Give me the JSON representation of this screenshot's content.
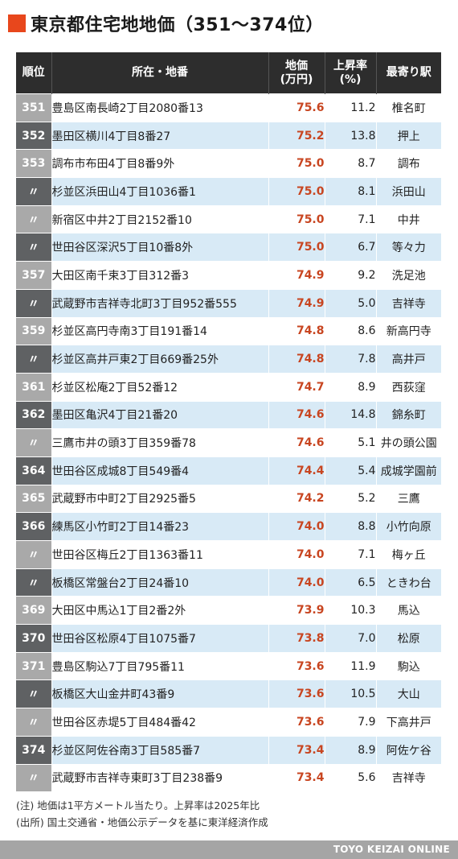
{
  "title": "東京都住宅地地価（351〜374位）",
  "headers": {
    "rank": "順位",
    "address": "所在・地番",
    "price_line1": "地価",
    "price_line2": "(万円)",
    "rate_line1": "上昇率",
    "rate_line2": "(%)",
    "station": "最寄り駅"
  },
  "rows": [
    {
      "rank": "351",
      "address": "豊島区南長崎2丁目2080番13",
      "price": "75.6",
      "rate": "11.2",
      "station": "椎名町"
    },
    {
      "rank": "352",
      "address": "墨田区横川4丁目8番27",
      "price": "75.2",
      "rate": "13.8",
      "station": "押上"
    },
    {
      "rank": "353",
      "address": "調布市布田4丁目8番9外",
      "price": "75.0",
      "rate": "8.7",
      "station": "調布"
    },
    {
      "rank": "〃",
      "address": "杉並区浜田山4丁目1036番1",
      "price": "75.0",
      "rate": "8.1",
      "station": "浜田山"
    },
    {
      "rank": "〃",
      "address": "新宿区中井2丁目2152番10",
      "price": "75.0",
      "rate": "7.1",
      "station": "中井"
    },
    {
      "rank": "〃",
      "address": "世田谷区深沢5丁目10番8外",
      "price": "75.0",
      "rate": "6.7",
      "station": "等々力"
    },
    {
      "rank": "357",
      "address": "大田区南千束3丁目312番3",
      "price": "74.9",
      "rate": "9.2",
      "station": "洗足池"
    },
    {
      "rank": "〃",
      "address": "武蔵野市吉祥寺北町3丁目952番555",
      "price": "74.9",
      "rate": "5.0",
      "station": "吉祥寺"
    },
    {
      "rank": "359",
      "address": "杉並区高円寺南3丁目191番14",
      "price": "74.8",
      "rate": "8.6",
      "station": "新高円寺"
    },
    {
      "rank": "〃",
      "address": "杉並区高井戸東2丁目669番25外",
      "price": "74.8",
      "rate": "7.8",
      "station": "高井戸"
    },
    {
      "rank": "361",
      "address": "杉並区松庵2丁目52番12",
      "price": "74.7",
      "rate": "8.9",
      "station": "西荻窪"
    },
    {
      "rank": "362",
      "address": "墨田区亀沢4丁目21番20",
      "price": "74.6",
      "rate": "14.8",
      "station": "錦糸町"
    },
    {
      "rank": "〃",
      "address": "三鷹市井の頭3丁目359番78",
      "price": "74.6",
      "rate": "5.1",
      "station": "井の頭公園"
    },
    {
      "rank": "364",
      "address": "世田谷区成城8丁目549番4",
      "price": "74.4",
      "rate": "5.4",
      "station": "成城学園前"
    },
    {
      "rank": "365",
      "address": "武蔵野市中町2丁目2925番5",
      "price": "74.2",
      "rate": "5.2",
      "station": "三鷹"
    },
    {
      "rank": "366",
      "address": "練馬区小竹町2丁目14番23",
      "price": "74.0",
      "rate": "8.8",
      "station": "小竹向原"
    },
    {
      "rank": "〃",
      "address": "世田谷区梅丘2丁目1363番11",
      "price": "74.0",
      "rate": "7.1",
      "station": "梅ヶ丘"
    },
    {
      "rank": "〃",
      "address": "板橋区常盤台2丁目24番10",
      "price": "74.0",
      "rate": "6.5",
      "station": "ときわ台"
    },
    {
      "rank": "369",
      "address": "大田区中馬込1丁目2番2外",
      "price": "73.9",
      "rate": "10.3",
      "station": "馬込"
    },
    {
      "rank": "370",
      "address": "世田谷区松原4丁目1075番7",
      "price": "73.8",
      "rate": "7.0",
      "station": "松原"
    },
    {
      "rank": "371",
      "address": "豊島区駒込7丁目795番11",
      "price": "73.6",
      "rate": "11.9",
      "station": "駒込"
    },
    {
      "rank": "〃",
      "address": "板橋区大山金井町43番9",
      "price": "73.6",
      "rate": "10.5",
      "station": "大山"
    },
    {
      "rank": "〃",
      "address": "世田谷区赤堤5丁目484番42",
      "price": "73.6",
      "rate": "7.9",
      "station": "下高井戸"
    },
    {
      "rank": "374",
      "address": "杉並区阿佐谷南3丁目585番7",
      "price": "73.4",
      "rate": "8.9",
      "station": "阿佐ケ谷"
    },
    {
      "rank": "〃",
      "address": "武蔵野市吉祥寺東町3丁目238番9",
      "price": "73.4",
      "rate": "5.6",
      "station": "吉祥寺"
    }
  ],
  "notes": [
    "(注) 地価は1平方メートル当たり。上昇率は2025年比",
    "(出所) 国土交通省・地価公示データを基に東洋経済作成"
  ],
  "footer": "TOYO KEIZAI ONLINE",
  "colors": {
    "accent": "#e8471c",
    "price_text": "#c84520",
    "header_bg": "#2d2d2d",
    "row_blue": "#d8eaf6",
    "rank_dark": "#5f6163",
    "rank_light": "#a9a9a9"
  }
}
